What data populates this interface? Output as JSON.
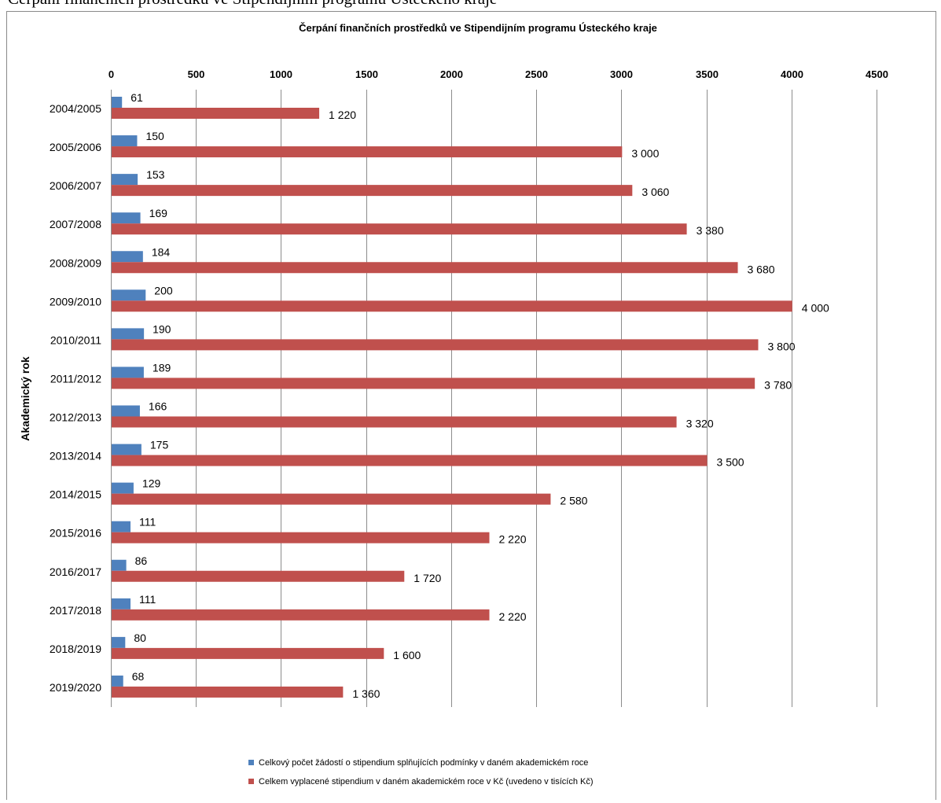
{
  "header_text": "Čerpání finančních prostředků ve Stipendijním programu Ústeckého kraje",
  "chart_data": {
    "type": "bar",
    "orientation": "horizontal",
    "title": "Čerpání finančních prostředků ve Stipendijním programu Ústeckého kraje",
    "ylabel": "Akademický rok",
    "xlabel": "",
    "xlim": [
      0,
      4500
    ],
    "xticks": [
      "0",
      "500",
      "1000",
      "1500",
      "2000",
      "2500",
      "3000",
      "3500",
      "4000",
      "4500"
    ],
    "x_axis_position": "top",
    "grid": true,
    "legend_position": "bottom",
    "categories": [
      "2004/2005",
      "2005/2006",
      "2006/2007",
      "2007/2008",
      "2008/2009",
      "2009/2010",
      "2010/2011",
      "2011/2012",
      "2012/2013",
      "2013/2014",
      "2014/2015",
      "2015/2016",
      "2016/2017",
      "2017/2018",
      "2018/2019",
      "2019/2020"
    ],
    "series": [
      {
        "name": "Celkový počet žádostí o stipendium splňujících podmínky v daném akademickém roce",
        "color": "#4f81bd",
        "values": [
          61,
          150,
          153,
          169,
          184,
          200,
          190,
          189,
          166,
          175,
          129,
          111,
          86,
          111,
          80,
          68
        ],
        "labels": [
          "61",
          "150",
          "153",
          "169",
          "184",
          "200",
          "190",
          "189",
          "166",
          "175",
          "129",
          "111",
          "86",
          "111",
          "80",
          "68"
        ]
      },
      {
        "name": "Celkem vyplacené stipendium v daném akademickém roce v Kč (uvedeno v tisících Kč)",
        "color": "#c0504d",
        "values": [
          1220,
          3000,
          3060,
          3380,
          3680,
          4000,
          3800,
          3780,
          3320,
          3500,
          2580,
          2220,
          1720,
          2220,
          1600,
          1360
        ],
        "labels": [
          "1 220",
          "3 000",
          "3 060",
          "3 380",
          "3 680",
          "4 000",
          "3 800",
          "3 780",
          "3 320",
          "3 500",
          "2 580",
          "2 220",
          "1 720",
          "2 220",
          "1 600",
          "1 360"
        ]
      }
    ]
  }
}
